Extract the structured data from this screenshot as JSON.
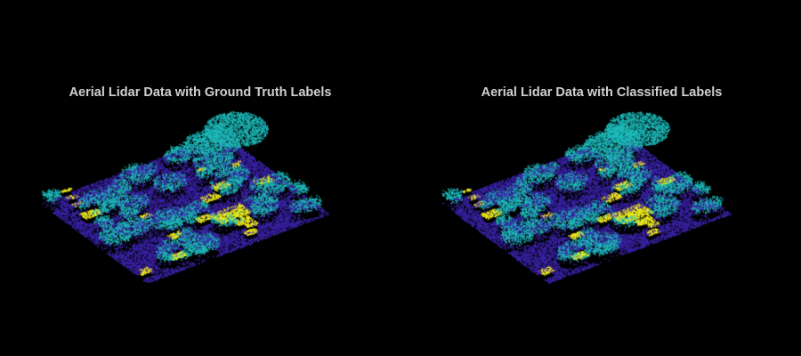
{
  "chart_data": [
    {
      "type": "scatter",
      "title": "Aerial Lidar Data with Ground Truth Labels",
      "classes_colors": {
        "ground": "#3b23a8",
        "vegetation": "#1fbcbc",
        "building": "#f2ec1a"
      },
      "background": "#000000",
      "axes_visible": false,
      "seed": 7
    },
    {
      "type": "scatter",
      "title": "Aerial Lidar Data with Classified Labels",
      "classes_colors": {
        "ground": "#3b23a8",
        "vegetation": "#1fbcbc",
        "building": "#f2ec1a"
      },
      "background": "#000000",
      "axes_visible": false,
      "seed": 7
    }
  ]
}
